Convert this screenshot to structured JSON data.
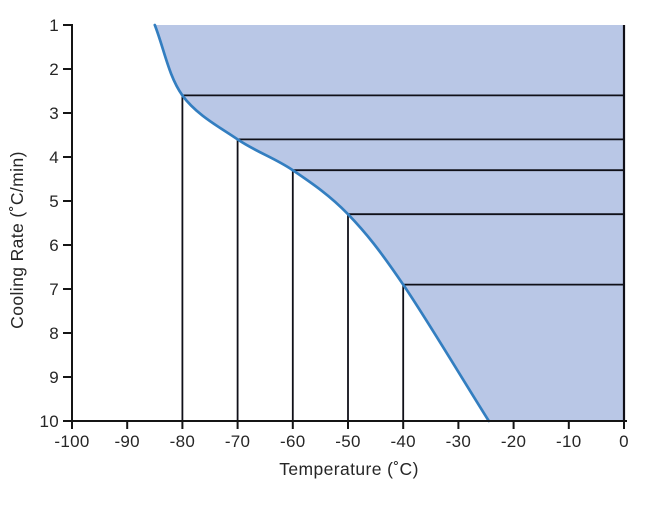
{
  "chart_data": {
    "type": "area",
    "title": "",
    "xlabel": "Temperature (˚C)",
    "ylabel": "Cooling Rate (˚C/min)",
    "xlim": [
      -100,
      0
    ],
    "ylim": [
      1,
      10
    ],
    "y_axis_direction": "inverted",
    "x_ticks": [
      -100,
      -90,
      -80,
      -70,
      -60,
      -50,
      -40,
      -30,
      -20,
      -10,
      0
    ],
    "y_ticks": [
      1,
      2,
      3,
      4,
      5,
      6,
      7,
      8,
      9,
      10
    ],
    "grid": false,
    "legend": false,
    "curve_points": [
      [
        -85,
        1
      ],
      [
        -80,
        2.6
      ],
      [
        -70,
        3.6
      ],
      [
        -60,
        4.3
      ],
      [
        -50,
        5.3
      ],
      [
        -40,
        6.9
      ],
      [
        -24.5,
        10
      ]
    ],
    "region_description": "shaded area between boundary curve and the top (rate=1) and right (temp=0) plot edges, extending to the bottom axis right of the curve",
    "guides": [
      {
        "temperature": -80,
        "cooling_rate": 2.6
      },
      {
        "temperature": -70,
        "cooling_rate": 3.6
      },
      {
        "temperature": -60,
        "cooling_rate": 4.3
      },
      {
        "temperature": -50,
        "cooling_rate": 5.3
      },
      {
        "temperature": -40,
        "cooling_rate": 6.9
      }
    ],
    "colors": {
      "region_fill": "#b9c7e6",
      "curve": "#337ec0",
      "guide_line": "#101018",
      "axis": "#151515",
      "text": "#262626"
    }
  }
}
